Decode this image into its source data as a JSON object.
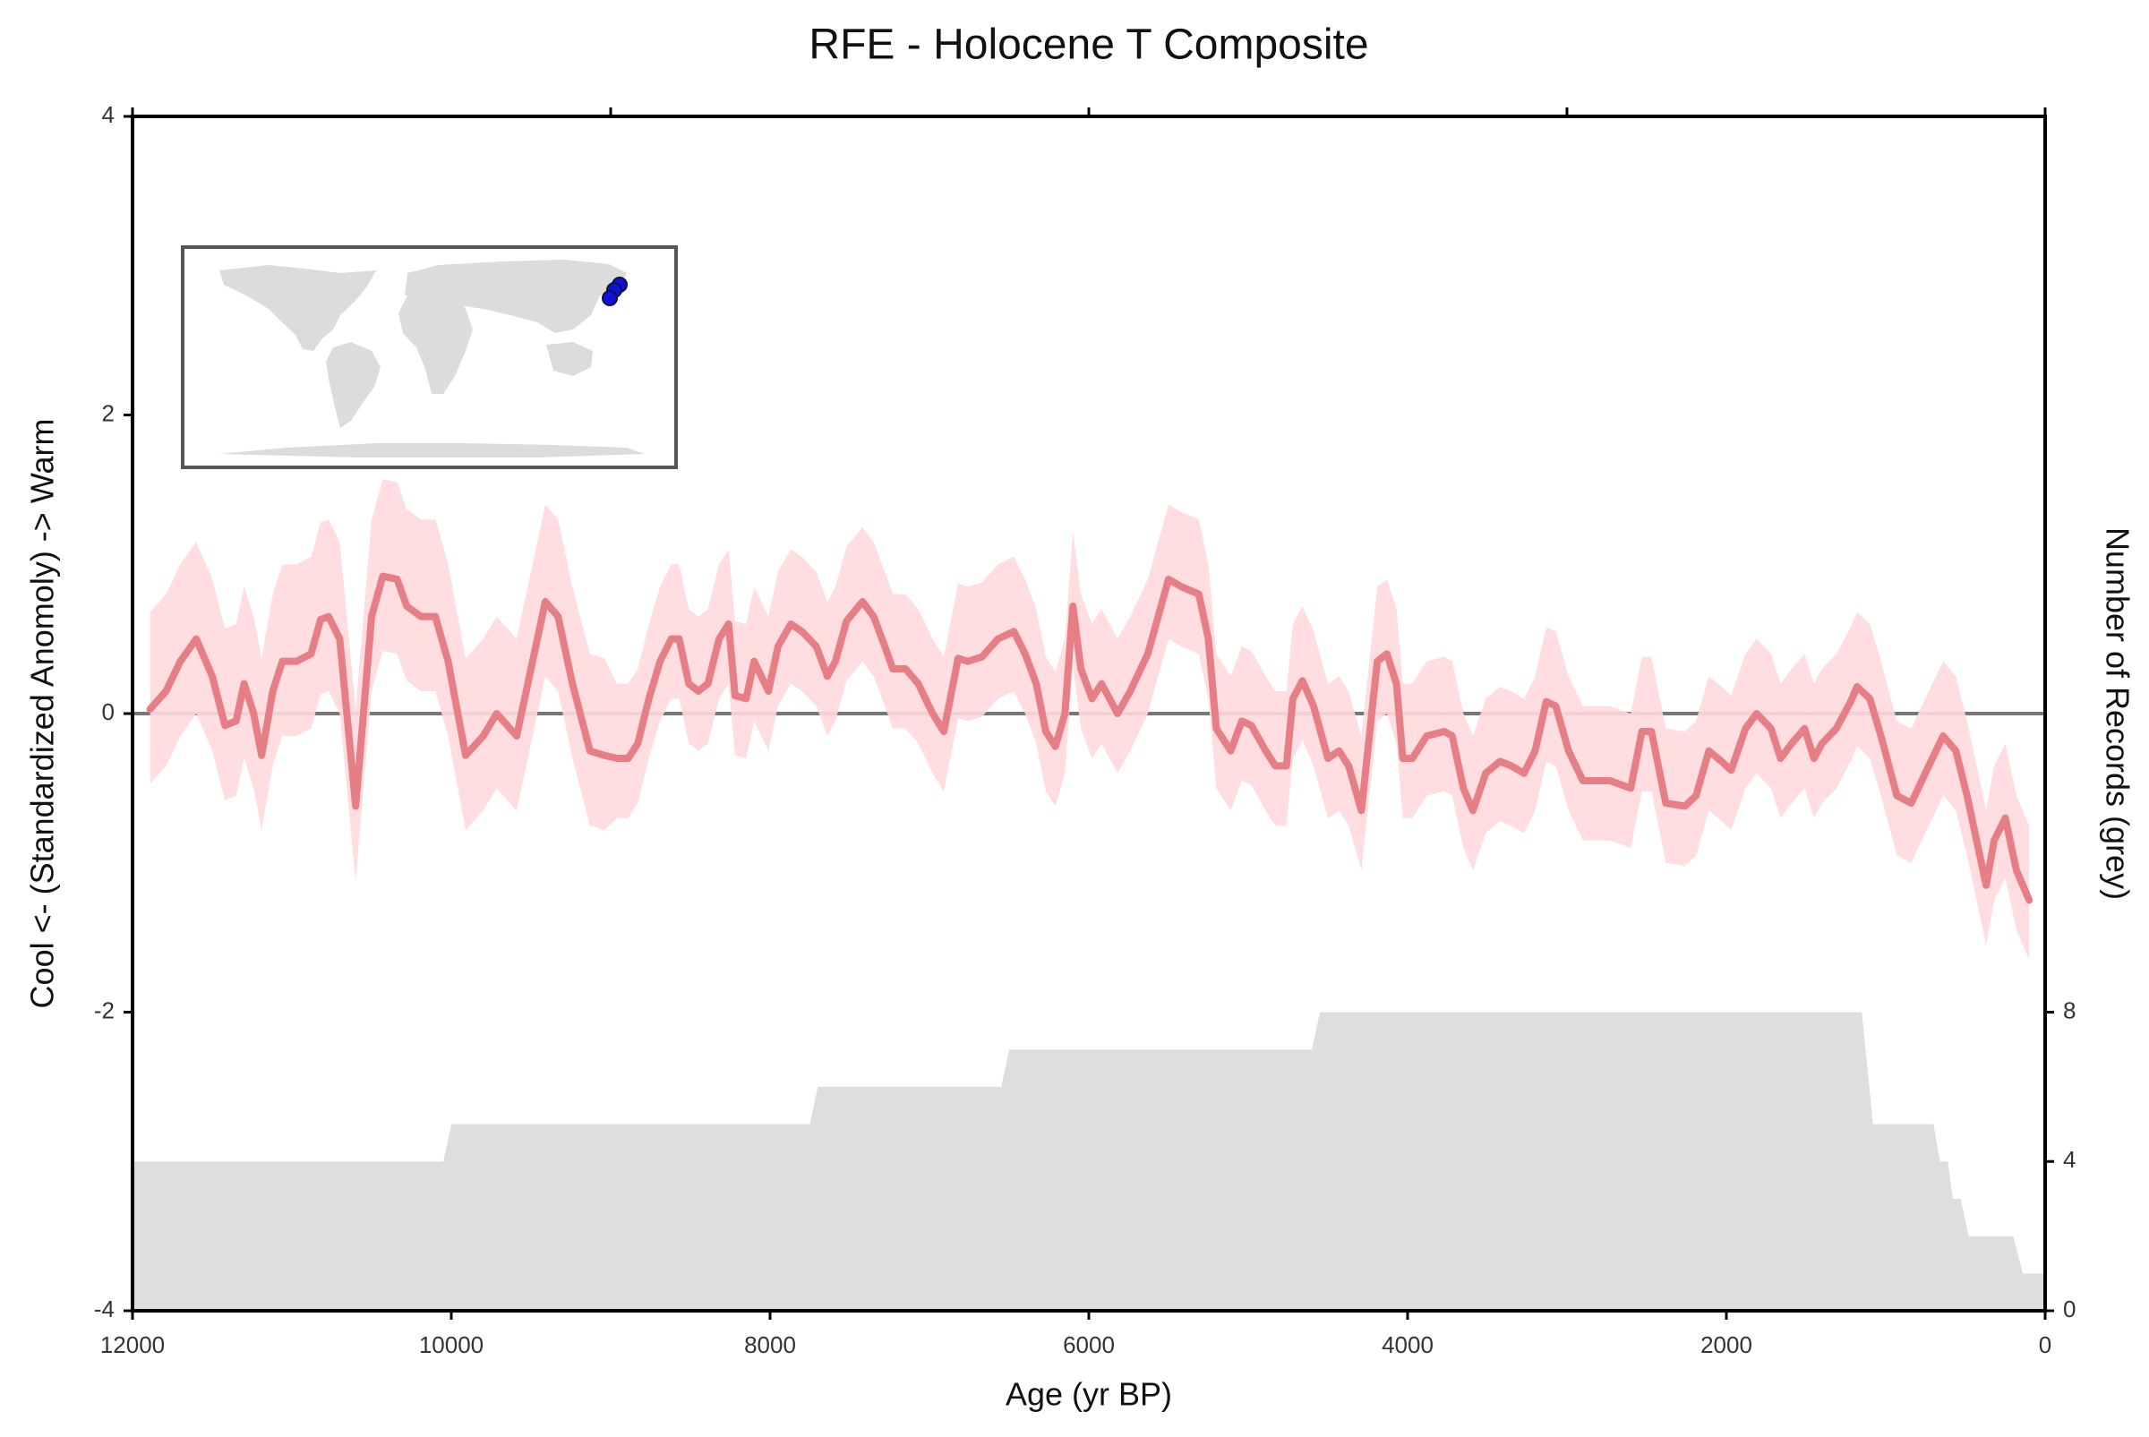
{
  "chart_data": {
    "type": "line",
    "title": "RFE - Holocene T Composite",
    "xlabel": "Age (yr BP)",
    "ylabel": "Cool <- (Standardized Anomoly) -> Warm",
    "y2label": "Number of Records (grey)",
    "xlim": [
      12000,
      0
    ],
    "xticks": [
      12000,
      10000,
      8000,
      6000,
      4000,
      2000,
      0
    ],
    "xticks_top": [
      12000,
      9000,
      6000,
      3000,
      0
    ],
    "ylim": [
      -4,
      4
    ],
    "yticks": [
      -4,
      -2,
      0,
      2,
      4
    ],
    "y2lim": [
      0,
      32
    ],
    "y2ticks": [
      0,
      4,
      8
    ],
    "reference_line": 0,
    "x": [
      11890,
      11790,
      11700,
      11600,
      11500,
      11420,
      11350,
      11300,
      11240,
      11190,
      11120,
      11060,
      10970,
      10880,
      10820,
      10770,
      10700,
      10600,
      10500,
      10430,
      10340,
      10280,
      10190,
      10100,
      10020,
      9910,
      9800,
      9715,
      9590,
      9500,
      9410,
      9330,
      9240,
      9130,
      9040,
      8960,
      8890,
      8830,
      8760,
      8690,
      8620,
      8570,
      8510,
      8450,
      8390,
      8320,
      8260,
      8220,
      8150,
      8100,
      8010,
      7950,
      7870,
      7800,
      7710,
      7640,
      7590,
      7520,
      7420,
      7350,
      7280,
      7230,
      7150,
      7070,
      6980,
      6910,
      6820,
      6760,
      6670,
      6570,
      6470,
      6400,
      6330,
      6270,
      6210,
      6150,
      6100,
      6050,
      5980,
      5920,
      5820,
      5740,
      5630,
      5500,
      5420,
      5310,
      5250,
      5200,
      5110,
      5040,
      4980,
      4890,
      4830,
      4760,
      4720,
      4660,
      4590,
      4500,
      4430,
      4370,
      4290,
      4250,
      4190,
      4130,
      4070,
      4030,
      3970,
      3880,
      3770,
      3720,
      3650,
      3590,
      3510,
      3420,
      3350,
      3270,
      3200,
      3130,
      3070,
      2990,
      2900,
      2810,
      2730,
      2600,
      2530,
      2470,
      2380,
      2260,
      2190,
      2110,
      2030,
      1970,
      1880,
      1810,
      1720,
      1660,
      1590,
      1510,
      1450,
      1400,
      1310,
      1220,
      1180,
      1100,
      1030,
      930,
      840,
      730,
      640,
      560,
      490,
      370,
      320,
      250,
      180,
      100
    ],
    "series": [
      {
        "color": "#e57f85",
        "band_color": "#ffd9de",
        "values": [
          0.03,
          0.15,
          0.35,
          0.5,
          0.25,
          -0.08,
          -0.05,
          0.2,
          0.0,
          -0.28,
          0.15,
          0.35,
          0.35,
          0.4,
          0.63,
          0.65,
          0.5,
          -0.62,
          0.65,
          0.92,
          0.9,
          0.72,
          0.65,
          0.65,
          0.35,
          -0.28,
          -0.15,
          0.0,
          -0.15,
          0.3,
          0.75,
          0.65,
          0.2,
          -0.25,
          -0.28,
          -0.3,
          -0.3,
          -0.2,
          0.1,
          0.35,
          0.5,
          0.5,
          0.2,
          0.15,
          0.2,
          0.5,
          0.6,
          0.12,
          0.1,
          0.35,
          0.15,
          0.45,
          0.6,
          0.55,
          0.45,
          0.25,
          0.35,
          0.62,
          0.75,
          0.65,
          0.45,
          0.3,
          0.3,
          0.2,
          0.0,
          -0.12,
          0.37,
          0.35,
          0.38,
          0.5,
          0.55,
          0.4,
          0.2,
          -0.12,
          -0.22,
          0.0,
          0.72,
          0.3,
          0.1,
          0.2,
          0.0,
          0.15,
          0.4,
          0.9,
          0.85,
          0.8,
          0.5,
          -0.1,
          -0.25,
          -0.05,
          -0.08,
          -0.25,
          -0.35,
          -0.35,
          0.1,
          0.22,
          0.05,
          -0.3,
          -0.25,
          -0.35,
          -0.65,
          -0.25,
          0.35,
          0.4,
          0.2,
          -0.3,
          -0.3,
          -0.15,
          -0.12,
          -0.15,
          -0.5,
          -0.65,
          -0.4,
          -0.32,
          -0.35,
          -0.4,
          -0.25,
          0.08,
          0.05,
          -0.25,
          -0.45,
          -0.45,
          -0.45,
          -0.5,
          -0.12,
          -0.12,
          -0.6,
          -0.62,
          -0.55,
          -0.25,
          -0.32,
          -0.38,
          -0.1,
          0.0,
          -0.1,
          -0.3,
          -0.2,
          -0.1,
          -0.3,
          -0.2,
          -0.1,
          0.08,
          0.18,
          0.1,
          -0.15,
          -0.55,
          -0.6,
          -0.35,
          -0.15,
          -0.25,
          -0.55,
          -1.15,
          -0.85,
          -0.7,
          -1.05,
          -1.25
        ],
        "upper": [
          0.68,
          0.8,
          1.0,
          1.15,
          0.9,
          0.57,
          0.6,
          0.85,
          0.65,
          0.37,
          0.8,
          1.0,
          1.0,
          1.05,
          1.28,
          1.3,
          1.15,
          0.03,
          1.3,
          1.57,
          1.55,
          1.37,
          1.3,
          1.3,
          1.0,
          0.37,
          0.5,
          0.65,
          0.5,
          0.95,
          1.4,
          1.3,
          0.85,
          0.4,
          0.37,
          0.2,
          0.2,
          0.3,
          0.6,
          0.85,
          1.0,
          1.0,
          0.7,
          0.65,
          0.7,
          1.0,
          1.1,
          0.62,
          0.6,
          0.85,
          0.65,
          0.95,
          1.1,
          1.05,
          0.95,
          0.75,
          0.85,
          1.12,
          1.25,
          1.15,
          0.95,
          0.8,
          0.8,
          0.7,
          0.5,
          0.38,
          0.87,
          0.85,
          0.88,
          1.0,
          1.05,
          0.9,
          0.7,
          0.38,
          0.28,
          0.5,
          1.22,
          0.8,
          0.6,
          0.7,
          0.5,
          0.65,
          0.9,
          1.4,
          1.35,
          1.3,
          1.0,
          0.4,
          0.25,
          0.45,
          0.42,
          0.25,
          0.15,
          0.15,
          0.6,
          0.72,
          0.55,
          0.2,
          0.25,
          0.15,
          -0.15,
          0.25,
          0.85,
          0.9,
          0.7,
          0.2,
          0.2,
          0.35,
          0.38,
          0.35,
          0.0,
          -0.15,
          0.1,
          0.18,
          0.15,
          0.1,
          0.25,
          0.58,
          0.55,
          0.25,
          0.05,
          0.05,
          0.05,
          0.0,
          0.38,
          0.38,
          -0.1,
          -0.12,
          -0.05,
          0.25,
          0.18,
          0.12,
          0.4,
          0.5,
          0.4,
          0.2,
          0.3,
          0.4,
          0.2,
          0.3,
          0.4,
          0.58,
          0.68,
          0.6,
          0.35,
          -0.05,
          -0.1,
          0.15,
          0.35,
          0.25,
          -0.05,
          -0.65,
          -0.35,
          -0.2,
          -0.55,
          -0.75
        ],
        "lower": [
          -0.47,
          -0.35,
          -0.15,
          0.0,
          -0.25,
          -0.58,
          -0.55,
          -0.3,
          -0.5,
          -0.78,
          -0.35,
          -0.15,
          -0.15,
          -0.1,
          0.13,
          0.15,
          0.0,
          -1.12,
          0.15,
          0.42,
          0.4,
          0.22,
          0.15,
          0.15,
          -0.15,
          -0.78,
          -0.65,
          -0.5,
          -0.65,
          -0.2,
          0.25,
          0.15,
          -0.3,
          -0.75,
          -0.78,
          -0.7,
          -0.7,
          -0.6,
          -0.3,
          -0.05,
          0.1,
          0.1,
          -0.2,
          -0.25,
          -0.2,
          0.1,
          0.2,
          -0.28,
          -0.3,
          -0.05,
          -0.25,
          0.05,
          0.2,
          0.15,
          0.05,
          -0.15,
          -0.05,
          0.22,
          0.35,
          0.25,
          0.05,
          -0.1,
          -0.1,
          -0.2,
          -0.4,
          -0.52,
          -0.03,
          -0.05,
          -0.02,
          0.1,
          0.15,
          0.0,
          -0.2,
          -0.52,
          -0.62,
          -0.4,
          0.32,
          -0.1,
          -0.3,
          -0.2,
          -0.4,
          -0.25,
          0.0,
          0.5,
          0.45,
          0.4,
          0.1,
          -0.5,
          -0.65,
          -0.45,
          -0.48,
          -0.65,
          -0.75,
          -0.75,
          -0.3,
          -0.18,
          -0.35,
          -0.7,
          -0.65,
          -0.75,
          -1.05,
          -0.65,
          -0.05,
          0.0,
          -0.2,
          -0.7,
          -0.7,
          -0.55,
          -0.52,
          -0.55,
          -0.9,
          -1.05,
          -0.8,
          -0.72,
          -0.75,
          -0.8,
          -0.65,
          -0.32,
          -0.35,
          -0.65,
          -0.85,
          -0.85,
          -0.85,
          -0.9,
          -0.52,
          -0.52,
          -1.0,
          -1.02,
          -0.95,
          -0.65,
          -0.72,
          -0.78,
          -0.5,
          -0.4,
          -0.5,
          -0.7,
          -0.6,
          -0.5,
          -0.7,
          -0.6,
          -0.5,
          -0.32,
          -0.22,
          -0.3,
          -0.55,
          -0.95,
          -1.0,
          -0.75,
          -0.55,
          -0.65,
          -0.95,
          -1.55,
          -1.25,
          -1.1,
          -1.45,
          -1.65
        ]
      }
    ],
    "records": {
      "axis": "y2",
      "color": "#dedede",
      "x": [
        12000,
        10050,
        10000,
        7750,
        7700,
        6550,
        6500,
        4600,
        4550,
        1150,
        1080,
        700,
        660,
        610,
        580,
        530,
        480,
        200,
        140,
        0
      ],
      "values": [
        4,
        4,
        5,
        5,
        6,
        6,
        7,
        7,
        8,
        8,
        5,
        5,
        4,
        4,
        3,
        3,
        2,
        2,
        1,
        1
      ]
    }
  }
}
